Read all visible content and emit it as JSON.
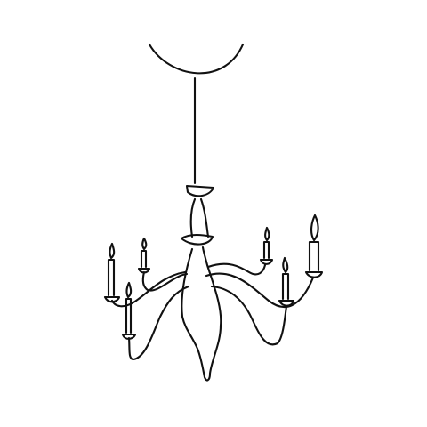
{
  "drawing": {
    "subject": "chandelier-icon",
    "style": "hand-drawn line art",
    "stroke_color": "#111111",
    "background_color": "#ffffff",
    "candle_count": 6,
    "arm_count": 6
  }
}
